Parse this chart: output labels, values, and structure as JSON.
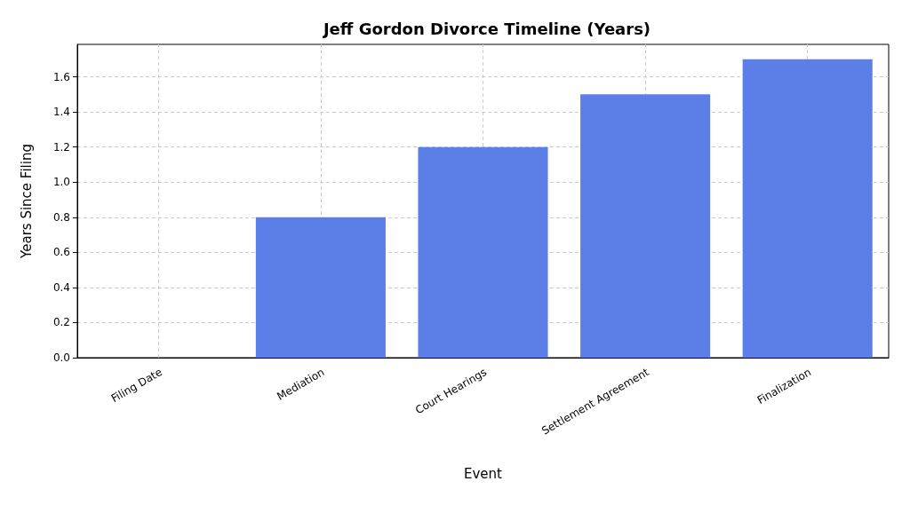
{
  "chart_data": {
    "type": "bar",
    "title": "Jeff Gordon Divorce Timeline (Years)",
    "xlabel": "Event",
    "ylabel": "Years Since Filing",
    "categories": [
      "Filing Date",
      "Mediation",
      "Court Hearings",
      "Settlement Agreement",
      "Finalization"
    ],
    "values": [
      0,
      0.8,
      1.2,
      1.5,
      1.7
    ],
    "color": "#5b7fe6",
    "ylim": [
      0,
      1.785
    ],
    "yticks": [
      {
        "value": 0,
        "label": "0.0"
      },
      {
        "value": 0.2,
        "label": "0.2"
      },
      {
        "value": 0.4,
        "label": "0.4"
      },
      {
        "value": 0.6,
        "label": "0.6"
      },
      {
        "value": 0.8,
        "label": "0.8"
      },
      {
        "value": 1,
        "label": "1.0"
      },
      {
        "value": 1.2,
        "label": "1.2"
      },
      {
        "value": 1.4,
        "label": "1.4"
      },
      {
        "value": 1.6,
        "label": "1.6"
      }
    ],
    "grid": true
  }
}
